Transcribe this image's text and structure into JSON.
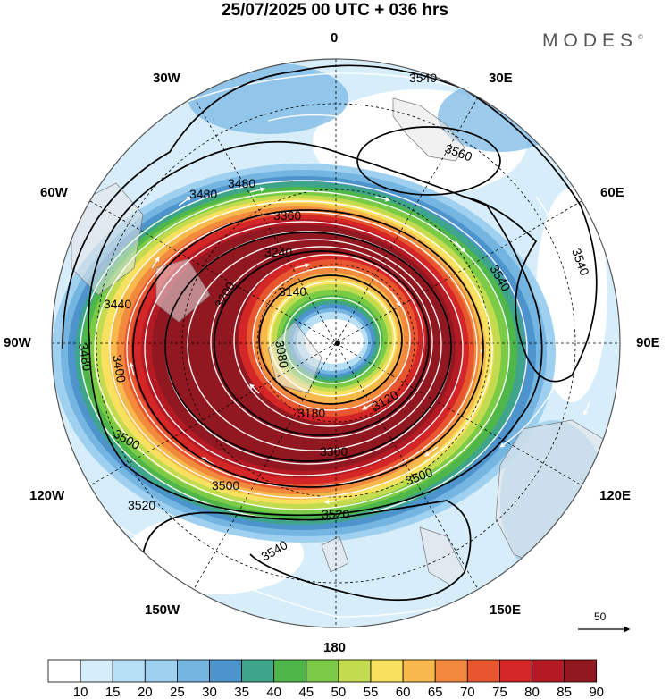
{
  "header": {
    "title": "25/07/2025  00 UTC  + 036 hrs"
  },
  "brand": {
    "name": "MODES",
    "mark": "©"
  },
  "map": {
    "projection": "south-polar-stereographic",
    "longitude_labels": {
      "top": "0",
      "bottom": "180",
      "left": "90W",
      "right": "90E",
      "nw30": "30W",
      "ne30": "30E",
      "nw60": "60W",
      "ne60": "60E",
      "sw120": "120W",
      "se120": "120E",
      "sw150": "150W",
      "se150": "150E"
    },
    "contour_labels": [
      "3540",
      "3560",
      "3480",
      "3480",
      "3360",
      "3240",
      "3140",
      "3440",
      "3480",
      "3400",
      "3500",
      "3500",
      "3520",
      "3540",
      "3540",
      "3540",
      "3200",
      "3180",
      "3300",
      "3500",
      "3520",
      "3080",
      "3120"
    ],
    "reference_vector": {
      "value": "50"
    }
  },
  "colorbar": {
    "labels": [
      "10",
      "15",
      "20",
      "25",
      "30",
      "35",
      "40",
      "45",
      "50",
      "55",
      "60",
      "65",
      "70",
      "75",
      "80",
      "85",
      "90"
    ],
    "colors": [
      "#ffffff",
      "#d6eefa",
      "#b7e0f6",
      "#9fd0ef",
      "#74b5e2",
      "#4d93cc",
      "#3fa58a",
      "#4fb74a",
      "#7ccb47",
      "#c3dc4f",
      "#f7e15e",
      "#f8b94c",
      "#f28a3e",
      "#e8562f",
      "#d42626",
      "#b41a24",
      "#911820"
    ]
  }
}
